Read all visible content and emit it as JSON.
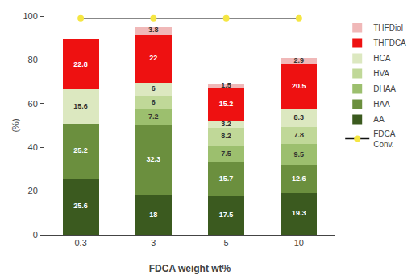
{
  "chart_data": {
    "type": "bar",
    "stacked": true,
    "xlabel": "FDCA weight wt%",
    "ylabel": "(%)",
    "categories": [
      "0.3",
      "3",
      "5",
      "10"
    ],
    "series": [
      {
        "name": "AA",
        "color": "#3b5a1f",
        "values": [
          25.6,
          18.0,
          17.5,
          19.3
        ]
      },
      {
        "name": "HAA",
        "color": "#6b8f3e",
        "values": [
          25.2,
          32.3,
          15.7,
          12.6
        ]
      },
      {
        "name": "DHAA",
        "color": "#9cbf6e",
        "values": [
          0.0,
          7.2,
          7.5,
          9.5
        ]
      },
      {
        "name": "HVA",
        "color": "#c0d898",
        "values": [
          0.0,
          6.0,
          8.2,
          7.8
        ]
      },
      {
        "name": "HCA",
        "color": "#dce8c0",
        "values": [
          15.6,
          6.0,
          3.2,
          8.3
        ]
      },
      {
        "name": "THFDCA",
        "color": "#ee1111",
        "values": [
          22.8,
          22.0,
          15.2,
          20.5
        ]
      },
      {
        "name": "THFDiol",
        "color": "#f0b8b8",
        "values": [
          0.0,
          3.8,
          1.5,
          2.9
        ]
      },
      {
        "name": "FDCA\nConv.",
        "type": "line",
        "color": "#111111",
        "colors": [
          "#f5e642",
          "#f5e642",
          "#f5e642",
          "#f5e642"
        ],
        "marker": "circle",
        "values": [
          99,
          99,
          99,
          99
        ]
      }
    ],
    "ylim": [
      0,
      100
    ],
    "yticks": [
      0,
      20,
      40,
      60,
      80,
      100
    ],
    "grid": false,
    "legend": "right",
    "data_labels": true
  }
}
